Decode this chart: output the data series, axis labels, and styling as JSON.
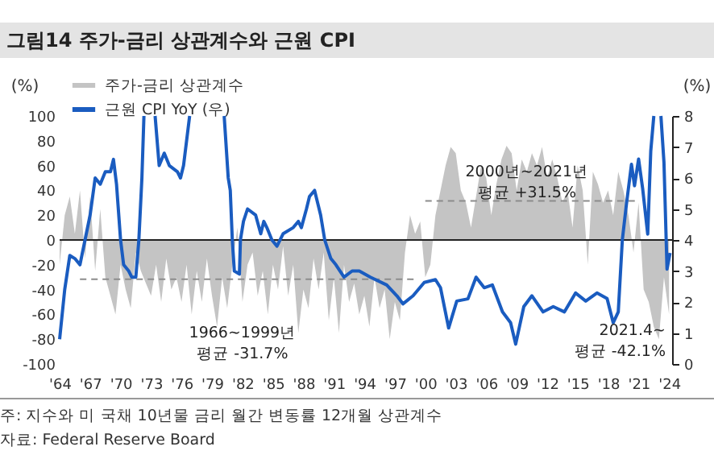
{
  "chart_data": {
    "type": "line",
    "title": "그림14 주가-금리 상관계수와 근원 CPI",
    "ylabel": "(%)",
    "y2label": "(%)",
    "xlim": [
      1964,
      2024.3
    ],
    "xticks": [
      {
        "value": 1964,
        "label": "'64"
      },
      {
        "value": 1967,
        "label": "'67"
      },
      {
        "value": 1970,
        "label": "'70"
      },
      {
        "value": 1973,
        "label": "'73"
      },
      {
        "value": 1976,
        "label": "'76"
      },
      {
        "value": 1979,
        "label": "'79"
      },
      {
        "value": 1982,
        "label": "'82"
      },
      {
        "value": 1985,
        "label": "'85"
      },
      {
        "value": 1988,
        "label": "'88"
      },
      {
        "value": 1991,
        "label": "'91"
      },
      {
        "value": 1994,
        "label": "'94"
      },
      {
        "value": 1997,
        "label": "'97"
      },
      {
        "value": 2000,
        "label": "'00"
      },
      {
        "value": 2003,
        "label": "'03"
      },
      {
        "value": 2006,
        "label": "'06"
      },
      {
        "value": 2009,
        "label": "'09"
      },
      {
        "value": 2012,
        "label": "'12"
      },
      {
        "value": 2015,
        "label": "'15"
      },
      {
        "value": 2018,
        "label": "'18"
      },
      {
        "value": 2021,
        "label": "'21"
      },
      {
        "value": 2024,
        "label": "'24"
      }
    ],
    "ylim": [
      -100,
      100
    ],
    "yticks": [
      -100,
      -80,
      -60,
      -40,
      -20,
      0,
      20,
      40,
      60,
      80,
      100
    ],
    "y2lim": [
      0,
      8
    ],
    "y2ticks": [
      0,
      1,
      2,
      3,
      4,
      5,
      6,
      7,
      8
    ],
    "legend": "top left",
    "series": [
      {
        "name": "주가-금리 상관계수",
        "type": "area",
        "color": "#c4c4c4",
        "x": [
          1964,
          1964.5,
          1965,
          1965.5,
          1966,
          1966.5,
          1967,
          1967.5,
          1968,
          1968.5,
          1969,
          1969.5,
          1970,
          1970.5,
          1971,
          1971.5,
          1972,
          1972.5,
          1973,
          1973.5,
          1974,
          1974.5,
          1975,
          1975.5,
          1976,
          1976.5,
          1977,
          1977.5,
          1978,
          1978.5,
          1979,
          1979.5,
          1980,
          1980.5,
          1981,
          1981.5,
          1982,
          1982.5,
          1983,
          1983.5,
          1984,
          1984.5,
          1985,
          1985.5,
          1986,
          1986.5,
          1987,
          1987.5,
          1988,
          1988.5,
          1989,
          1989.5,
          1990,
          1990.5,
          1991,
          1991.5,
          1992,
          1992.5,
          1993,
          1993.5,
          1994,
          1994.5,
          1995,
          1995.5,
          1996,
          1996.5,
          1997,
          1997.5,
          1998,
          1998.5,
          1999,
          1999.5,
          2000,
          2000.5,
          2001,
          2001.5,
          2002,
          2002.5,
          2003,
          2003.5,
          2004,
          2004.5,
          2005,
          2005.5,
          2006,
          2006.5,
          2007,
          2007.5,
          2008,
          2008.5,
          2009,
          2009.5,
          2010,
          2010.5,
          2011,
          2011.5,
          2012,
          2012.5,
          2013,
          2013.5,
          2014,
          2014.5,
          2015,
          2015.5,
          2016,
          2016.5,
          2017,
          2017.5,
          2018,
          2018.5,
          2019,
          2019.5,
          2020,
          2020.5,
          2021,
          2021.5,
          2022,
          2022.5,
          2023,
          2023.5,
          2024
        ],
        "values": [
          -20,
          20,
          35,
          5,
          40,
          -15,
          35,
          -25,
          25,
          -30,
          -45,
          -60,
          -20,
          -40,
          -55,
          -10,
          -25,
          -35,
          -45,
          -20,
          -50,
          -15,
          -40,
          -30,
          -50,
          -20,
          -60,
          -25,
          -50,
          -15,
          -45,
          -70,
          -30,
          -55,
          -20,
          10,
          -50,
          -20,
          -10,
          -45,
          -25,
          -60,
          -20,
          -40,
          -5,
          -45,
          -20,
          -75,
          -40,
          -55,
          -15,
          -40,
          -10,
          -65,
          -30,
          -75,
          -20,
          -50,
          -35,
          -60,
          -45,
          -70,
          -30,
          -55,
          -40,
          -80,
          -50,
          -65,
          -10,
          20,
          5,
          15,
          -30,
          -20,
          20,
          40,
          60,
          75,
          70,
          40,
          30,
          10,
          35,
          60,
          50,
          20,
          45,
          65,
          76,
          70,
          40,
          65,
          55,
          70,
          60,
          75,
          50,
          65,
          50,
          30,
          40,
          10,
          60,
          40,
          -20,
          55,
          45,
          30,
          40,
          20,
          55,
          40,
          20,
          -10,
          30,
          -40,
          -50,
          -70,
          -80,
          -30,
          -60
        ]
      },
      {
        "name": "근원 CPI YoY (우)",
        "type": "line",
        "axis": "y2",
        "color": "#1a5cc0",
        "x": [
          1964,
          1964.5,
          1965,
          1965.5,
          1966,
          1966.5,
          1967,
          1967.5,
          1968,
          1968.5,
          1969,
          1969.3,
          1969.6,
          1970,
          1970.3,
          1970.8,
          1971.1,
          1971.5,
          1971.8,
          1972.1,
          1972.3,
          1972.8,
          1973.4,
          1973.8,
          1974.3,
          1974.8,
          1975.6,
          1975.9,
          1976.2,
          1976.5,
          1976.8,
          1978.5,
          1980.2,
          1980.6,
          1980.8,
          1981,
          1981.2,
          1981.7,
          1981.8,
          1982.1,
          1982.5,
          1983.3,
          1983.8,
          1984.1,
          1984.4,
          1984.9,
          1985.4,
          1986,
          1987,
          1987.5,
          1987.8,
          1988.3,
          1988.6,
          1989.1,
          1989.7,
          1990.1,
          1990.7,
          1991.2,
          1992,
          1992.8,
          1993.5,
          1994.6,
          1996.2,
          1997.2,
          1997.8,
          1998.8,
          1999.9,
          2001,
          2001.5,
          2002.3,
          2003.1,
          2004.2,
          2005,
          2005.8,
          2006.6,
          2007.6,
          2008.4,
          2008.9,
          2009.7,
          2010.5,
          2011.6,
          2012.6,
          2013.7,
          2014.8,
          2015.8,
          2016.9,
          2017.9,
          2018.5,
          2019,
          2019.4,
          2019.8,
          2020.3,
          2020.6,
          2021,
          2021.4,
          2021.9,
          2022.2,
          2022.5,
          2022.9,
          2023.2,
          2023.5,
          2023.8,
          2024.1
        ],
        "values": [
          0.8,
          2.4,
          3.5,
          3.4,
          3.2,
          4.0,
          4.8,
          6.0,
          5.8,
          6.2,
          6.2,
          6.6,
          5.8,
          4.0,
          3.2,
          3.0,
          2.8,
          2.8,
          4.0,
          6.0,
          8,
          null,
          8,
          6.4,
          6.8,
          6.4,
          6.2,
          6.0,
          6.4,
          7.2,
          8,
          null,
          8,
          6.0,
          5.6,
          4.0,
          3.0,
          2.9,
          4.0,
          4.6,
          5.0,
          4.8,
          4.2,
          4.6,
          4.4,
          4.0,
          3.8,
          4.2,
          4.4,
          4.6,
          4.4,
          5.0,
          5.4,
          5.6,
          4.8,
          4.0,
          3.4,
          3.2,
          2.8,
          3.0,
          3.0,
          2.8,
          2.55,
          2.2,
          1.94,
          2.2,
          2.63,
          2.72,
          2.46,
          1.16,
          2.03,
          2.1,
          2.8,
          2.46,
          2.55,
          1.68,
          1.33,
          0.64,
          1.85,
          2.2,
          1.68,
          1.85,
          1.68,
          2.29,
          2.03,
          2.29,
          2.11,
          1.33,
          1.68,
          4.0,
          5.14,
          6.44,
          5.75,
          6.61,
          5.66,
          4.19,
          6.87,
          8,
          null,
          8,
          6.5,
          3.06,
          3.58
        ]
      },
      {
        "type": "line",
        "color": "#8c8c8c",
        "line_style": "dashed",
        "x": [
          1966,
          1999
        ],
        "values": [
          -31.7,
          -31.7
        ]
      },
      {
        "type": "line",
        "color": "#8c8c8c",
        "line_style": "dashed",
        "x": [
          2000,
          2021
        ],
        "values": [
          31.5,
          31.5
        ]
      }
    ],
    "ref_lines": [
      {
        "axis": "y",
        "value": 0,
        "color": "#222222"
      }
    ],
    "annotations": [
      {
        "text": "1966~1999년\n평균 -31.7%",
        "x": 1982,
        "y": -31.7
      },
      {
        "text": "2000년~2021년\n평균 +31.5%",
        "x": 2010,
        "y": 31.5
      },
      "2021.4~\n평균 -42.1%",
      "주: 지수와 미 국채 10년물 금리 월간 변동률 12개월 상관계수",
      "자료: Federal Reserve Board"
    ]
  }
}
